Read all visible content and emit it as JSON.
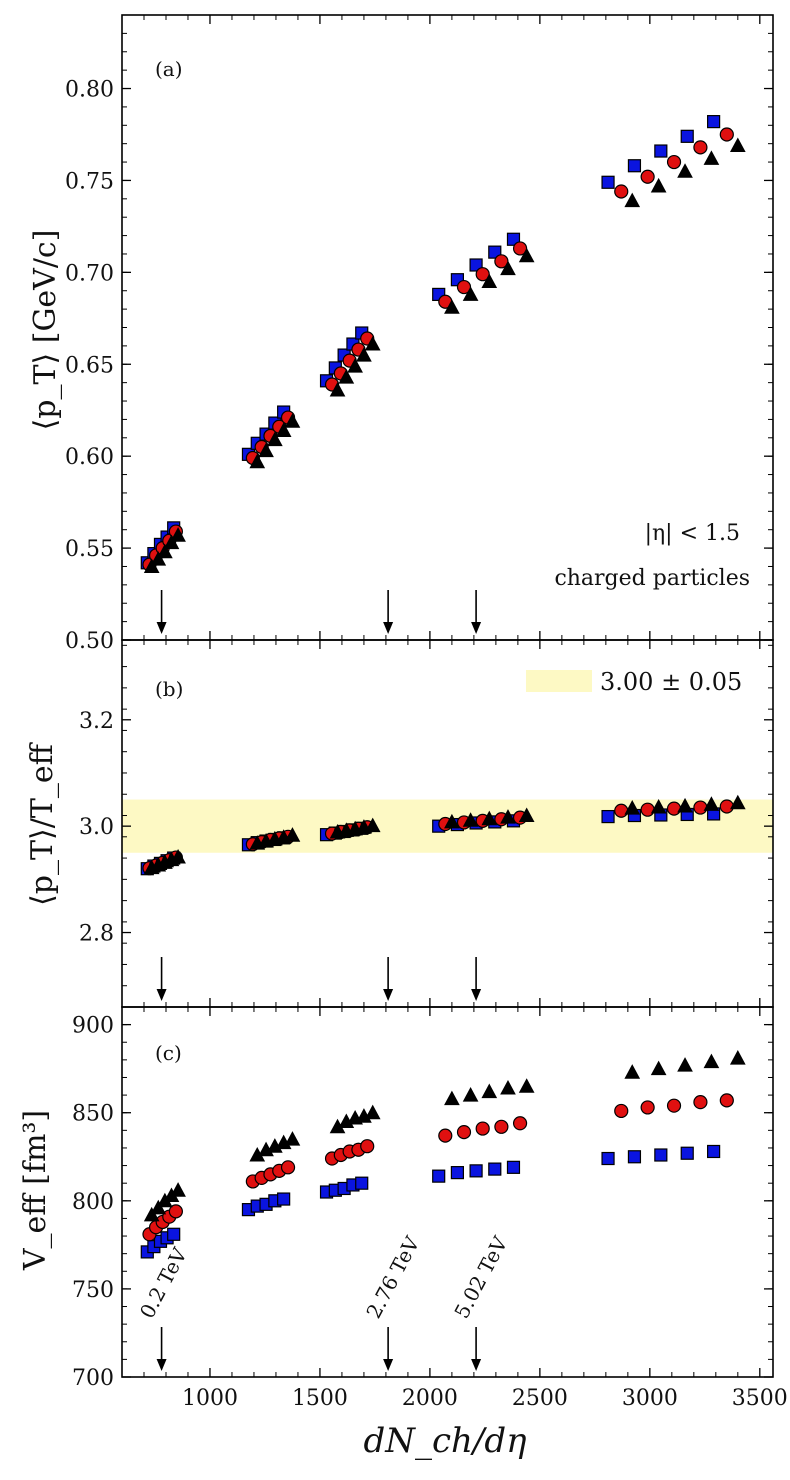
{
  "chart_data": [
    {
      "panel": "a",
      "type": "scatter",
      "panel_label": "(a)",
      "ylabel": "⟨p_T⟩ [GeV/c]",
      "ylim": [
        0.5,
        0.84
      ],
      "yticks": [
        0.5,
        0.55,
        0.6,
        0.65,
        0.7,
        0.75,
        0.8
      ],
      "ytick_labels": [
        "0.50",
        "0.55",
        "0.60",
        "0.65",
        "0.70",
        "0.75",
        "0.80"
      ],
      "annotation_1": "|η| < 1.5",
      "annotation_2": "charged particles",
      "series": [
        {
          "name": "square",
          "color": "#0a14e0",
          "marker": "square",
          "x": [
            715,
            745,
            775,
            805,
            835,
            1175,
            1215,
            1255,
            1295,
            1335,
            1530,
            1570,
            1610,
            1650,
            1690,
            2040,
            2125,
            2210,
            2295,
            2380,
            2810,
            2930,
            3050,
            3170,
            3290
          ],
          "y": [
            0.542,
            0.547,
            0.552,
            0.556,
            0.561,
            0.601,
            0.607,
            0.612,
            0.618,
            0.624,
            0.641,
            0.648,
            0.655,
            0.661,
            0.667,
            0.688,
            0.696,
            0.704,
            0.711,
            0.718,
            0.749,
            0.758,
            0.766,
            0.774,
            0.782
          ]
        },
        {
          "name": "circle",
          "color": "#e01010",
          "marker": "circle",
          "x": [
            725,
            755,
            785,
            815,
            845,
            1195,
            1235,
            1275,
            1315,
            1355,
            1555,
            1595,
            1635,
            1675,
            1715,
            2070,
            2155,
            2240,
            2325,
            2410,
            2870,
            2990,
            3110,
            3230,
            3350
          ],
          "y": [
            0.541,
            0.546,
            0.55,
            0.554,
            0.559,
            0.599,
            0.605,
            0.611,
            0.616,
            0.621,
            0.639,
            0.645,
            0.652,
            0.658,
            0.664,
            0.684,
            0.692,
            0.699,
            0.706,
            0.713,
            0.744,
            0.752,
            0.76,
            0.768,
            0.775
          ]
        },
        {
          "name": "triangle",
          "color": "#000000",
          "marker": "triangle",
          "x": [
            735,
            765,
            795,
            825,
            855,
            1215,
            1255,
            1295,
            1335,
            1375,
            1580,
            1620,
            1660,
            1700,
            1740,
            2100,
            2185,
            2270,
            2355,
            2440,
            2920,
            3040,
            3160,
            3280,
            3400
          ],
          "y": [
            0.54,
            0.544,
            0.548,
            0.553,
            0.557,
            0.597,
            0.603,
            0.609,
            0.614,
            0.619,
            0.636,
            0.643,
            0.649,
            0.655,
            0.661,
            0.681,
            0.688,
            0.695,
            0.702,
            0.709,
            0.739,
            0.747,
            0.755,
            0.762,
            0.769
          ]
        }
      ]
    },
    {
      "panel": "b",
      "type": "scatter",
      "panel_label": "(b)",
      "ylabel": "⟨p_T⟩/T_eff",
      "ylim": [
        2.66,
        3.35
      ],
      "yticks": [
        2.8,
        3.0,
        3.2
      ],
      "ytick_labels": [
        "2.8",
        "3.0",
        "3.2"
      ],
      "band": {
        "center": 3.0,
        "half_width": 0.05,
        "color": "#fdf9c4"
      },
      "legend_label": "3.00 ± 0.05",
      "series": [
        {
          "name": "square",
          "color": "#0a14e0",
          "marker": "square",
          "x": [
            715,
            745,
            775,
            805,
            835,
            1175,
            1215,
            1255,
            1295,
            1335,
            1530,
            1570,
            1610,
            1650,
            1690,
            2040,
            2125,
            2210,
            2295,
            2380,
            2810,
            2930,
            3050,
            3170,
            3290
          ],
          "y": [
            2.92,
            2.925,
            2.93,
            2.935,
            2.94,
            2.965,
            2.969,
            2.972,
            2.975,
            2.978,
            2.984,
            2.987,
            2.99,
            2.993,
            2.996,
            3.0,
            3.003,
            3.006,
            3.008,
            3.01,
            3.018,
            3.02,
            3.021,
            3.022,
            3.023
          ]
        },
        {
          "name": "circle",
          "color": "#e01010",
          "marker": "circle",
          "x": [
            725,
            755,
            785,
            815,
            845,
            1195,
            1235,
            1275,
            1315,
            1355,
            1555,
            1595,
            1635,
            1675,
            1715,
            2070,
            2155,
            2240,
            2325,
            2410,
            2870,
            2990,
            3110,
            3230,
            3350
          ],
          "y": [
            2.921,
            2.926,
            2.931,
            2.936,
            2.941,
            2.966,
            2.97,
            2.974,
            2.977,
            2.98,
            2.986,
            2.989,
            2.992,
            2.995,
            2.998,
            3.004,
            3.007,
            3.01,
            3.013,
            3.016,
            3.029,
            3.031,
            3.033,
            3.035,
            3.037
          ]
        },
        {
          "name": "triangle",
          "color": "#000000",
          "marker": "triangle",
          "x": [
            735,
            765,
            795,
            825,
            855,
            1215,
            1255,
            1295,
            1335,
            1375,
            1580,
            1620,
            1660,
            1700,
            1740,
            2100,
            2185,
            2270,
            2355,
            2440,
            2920,
            3040,
            3160,
            3280,
            3400
          ],
          "y": [
            2.922,
            2.927,
            2.932,
            2.937,
            2.942,
            2.968,
            2.972,
            2.976,
            2.979,
            2.983,
            2.989,
            2.992,
            2.995,
            2.998,
            3.001,
            3.008,
            3.011,
            3.014,
            3.017,
            3.02,
            3.034,
            3.036,
            3.038,
            3.041,
            3.044
          ]
        }
      ]
    },
    {
      "panel": "c",
      "type": "scatter",
      "panel_label": "(c)",
      "ylabel": "V_eff [fm³]",
      "ylim": [
        700,
        910
      ],
      "yticks": [
        700,
        750,
        800,
        850,
        900
      ],
      "ytick_labels": [
        "700",
        "750",
        "800",
        "850",
        "900"
      ],
      "xlabel": "dN_ch/dη",
      "xlim": [
        600,
        3560
      ],
      "xticks": [
        1000,
        1500,
        2000,
        2500,
        3000,
        3500
      ],
      "xtick_labels": [
        "1000",
        "1500",
        "2000",
        "2500",
        "3000",
        "3500"
      ],
      "energy_labels": [
        {
          "label": "0.2 TeV",
          "x": 780
        },
        {
          "label": "2.76 TeV",
          "x": 1810
        },
        {
          "label": "5.02 TeV",
          "x": 2210
        }
      ],
      "series": [
        {
          "name": "square",
          "color": "#0a14e0",
          "marker": "square",
          "x": [
            715,
            745,
            775,
            805,
            835,
            1175,
            1215,
            1255,
            1295,
            1335,
            1530,
            1570,
            1610,
            1650,
            1690,
            2040,
            2125,
            2210,
            2295,
            2380,
            2810,
            2930,
            3050,
            3170,
            3290
          ],
          "y": [
            771,
            774,
            777,
            779,
            781,
            795,
            797,
            798,
            800,
            801,
            805,
            806,
            807,
            809,
            810,
            814,
            816,
            817,
            818,
            819,
            824,
            825,
            826,
            827,
            828
          ]
        },
        {
          "name": "circle",
          "color": "#e01010",
          "marker": "circle",
          "x": [
            725,
            755,
            785,
            815,
            845,
            1195,
            1235,
            1275,
            1315,
            1355,
            1555,
            1595,
            1635,
            1675,
            1715,
            2070,
            2155,
            2240,
            2325,
            2410,
            2870,
            2990,
            3110,
            3230,
            3350
          ],
          "y": [
            781,
            785,
            788,
            791,
            794,
            811,
            813,
            815,
            817,
            819,
            824,
            826,
            828,
            829,
            831,
            837,
            839,
            841,
            842,
            844,
            851,
            853,
            854,
            856,
            857
          ]
        },
        {
          "name": "triangle",
          "color": "#000000",
          "marker": "triangle",
          "x": [
            735,
            765,
            795,
            825,
            855,
            1215,
            1255,
            1295,
            1335,
            1375,
            1580,
            1620,
            1660,
            1700,
            1740,
            2100,
            2185,
            2270,
            2355,
            2440,
            2920,
            3040,
            3160,
            3280,
            3400
          ],
          "y": [
            792,
            796,
            800,
            803,
            806,
            826,
            829,
            831,
            833,
            835,
            842,
            845,
            847,
            848,
            850,
            858,
            860,
            862,
            864,
            865,
            873,
            875,
            877,
            879,
            881
          ]
        }
      ]
    }
  ],
  "arrows_x": [
    780,
    1810,
    2210
  ]
}
